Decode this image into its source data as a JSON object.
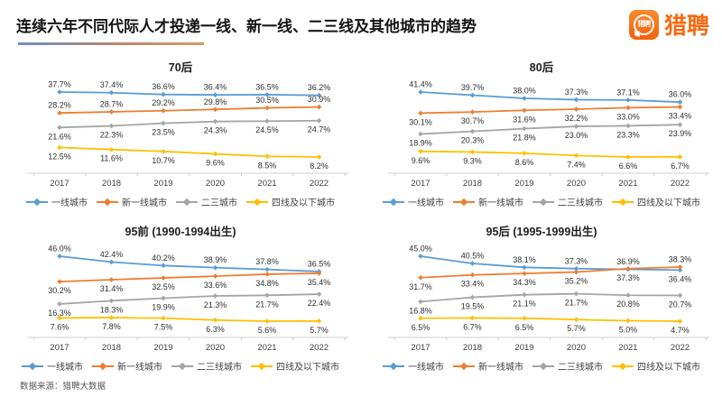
{
  "header": {
    "title": "连续六年不同代际人才投递一线、新一线、二三线及其他城市的趋势",
    "logo": {
      "bubble_text": "猎聘",
      "brand_text": "猎聘",
      "brand_color": "#f7690f"
    }
  },
  "footer": {
    "source": "数据来源：猎聘大数据"
  },
  "colors": {
    "tier1_blue": "#5B9BD5",
    "new_tier1_orange": "#ED7D31",
    "tier23_gray": "#A5A5A5",
    "tier4_yellow": "#FFC000"
  },
  "chart_data": [
    {
      "type": "line",
      "title": "70后",
      "x": [
        "2017",
        "2018",
        "2019",
        "2020",
        "2021",
        "2022"
      ],
      "grid": false,
      "legend_position": "bottom",
      "value_suffix": "%",
      "series": [
        {
          "name": "一线城市",
          "color": "#5B9BD5",
          "label_side": "above",
          "values": [
            37.7,
            37.4,
            36.6,
            36.4,
            36.5,
            36.2
          ]
        },
        {
          "name": "新一线城市",
          "color": "#ED7D31",
          "label_side": "above",
          "values": [
            28.2,
            28.7,
            29.2,
            29.8,
            30.5,
            30.9
          ]
        },
        {
          "name": "二三城市",
          "color": "#A5A5A5",
          "label_side": "below",
          "values": [
            21.6,
            22.3,
            23.5,
            24.3,
            24.5,
            24.7
          ]
        },
        {
          "name": "四线及以下城市",
          "color": "#FFC000",
          "label_side": "below",
          "values": [
            12.5,
            11.6,
            10.7,
            9.6,
            8.5,
            8.2
          ]
        }
      ]
    },
    {
      "type": "line",
      "title": "80后",
      "x": [
        "2017",
        "2018",
        "2019",
        "2020",
        "2021",
        "2022"
      ],
      "grid": false,
      "legend_position": "bottom",
      "value_suffix": "%",
      "series": [
        {
          "name": "一线城市",
          "color": "#5B9BD5",
          "label_side": "above",
          "values": [
            41.4,
            39.7,
            38.0,
            37.3,
            37.1,
            36.0
          ]
        },
        {
          "name": "新一线城市",
          "color": "#ED7D31",
          "label_side": "below",
          "values": [
            30.1,
            30.7,
            31.6,
            32.2,
            33.0,
            33.4
          ]
        },
        {
          "name": "二三线城市",
          "color": "#A5A5A5",
          "label_side": "below",
          "values": [
            18.9,
            20.3,
            21.8,
            23.0,
            23.3,
            23.9
          ]
        },
        {
          "name": "四线及以下城市",
          "color": "#FFC000",
          "label_side": "below",
          "values": [
            9.6,
            9.3,
            8.6,
            7.4,
            6.6,
            6.7
          ]
        }
      ]
    },
    {
      "type": "line",
      "title": "95前 (1990-1994出生)",
      "x": [
        "2017",
        "2018",
        "2019",
        "2020",
        "2021",
        "2022"
      ],
      "grid": false,
      "legend_position": "bottom",
      "value_suffix": "%",
      "series": [
        {
          "name": "一线城市",
          "color": "#5B9BD5",
          "label_side": "above",
          "values": [
            46.0,
            42.4,
            40.2,
            38.9,
            37.8,
            36.5
          ]
        },
        {
          "name": "新一线城市",
          "color": "#ED7D31",
          "label_side": "below",
          "values": [
            30.2,
            31.4,
            32.5,
            33.6,
            34.8,
            35.4
          ]
        },
        {
          "name": "二三线城市",
          "color": "#A5A5A5",
          "label_side": "below",
          "values": [
            16.3,
            18.3,
            19.9,
            21.3,
            21.7,
            22.4
          ]
        },
        {
          "name": "四线及以下城市",
          "color": "#FFC000",
          "label_side": "below",
          "values": [
            7.6,
            7.8,
            7.5,
            6.3,
            5.6,
            5.7
          ]
        }
      ]
    },
    {
      "type": "line",
      "title": "95后 (1995-1999出生)",
      "x": [
        "2017",
        "2018",
        "2019",
        "2020",
        "2021",
        "2022"
      ],
      "grid": false,
      "legend_position": "bottom",
      "value_suffix": "%",
      "series": [
        {
          "name": "一线城市",
          "color": "#5B9BD5",
          "label_side": [
            "above",
            "above",
            "above",
            "above",
            "above",
            "below"
          ],
          "values": [
            45.0,
            40.5,
            38.1,
            37.3,
            36.9,
            36.4
          ]
        },
        {
          "name": "新一线城市",
          "color": "#ED7D31",
          "label_side": [
            "below",
            "below",
            "below",
            "below",
            "below",
            "above"
          ],
          "values": [
            31.7,
            33.4,
            34.3,
            35.2,
            37.3,
            38.3
          ]
        },
        {
          "name": "二三线城市",
          "color": "#A5A5A5",
          "label_side": "below",
          "values": [
            16.8,
            19.5,
            21.1,
            21.7,
            20.8,
            20.7
          ]
        },
        {
          "name": "四线及以下城市",
          "color": "#FFC000",
          "label_side": "below",
          "values": [
            6.5,
            6.7,
            6.5,
            5.7,
            5.0,
            4.7
          ]
        }
      ]
    }
  ]
}
